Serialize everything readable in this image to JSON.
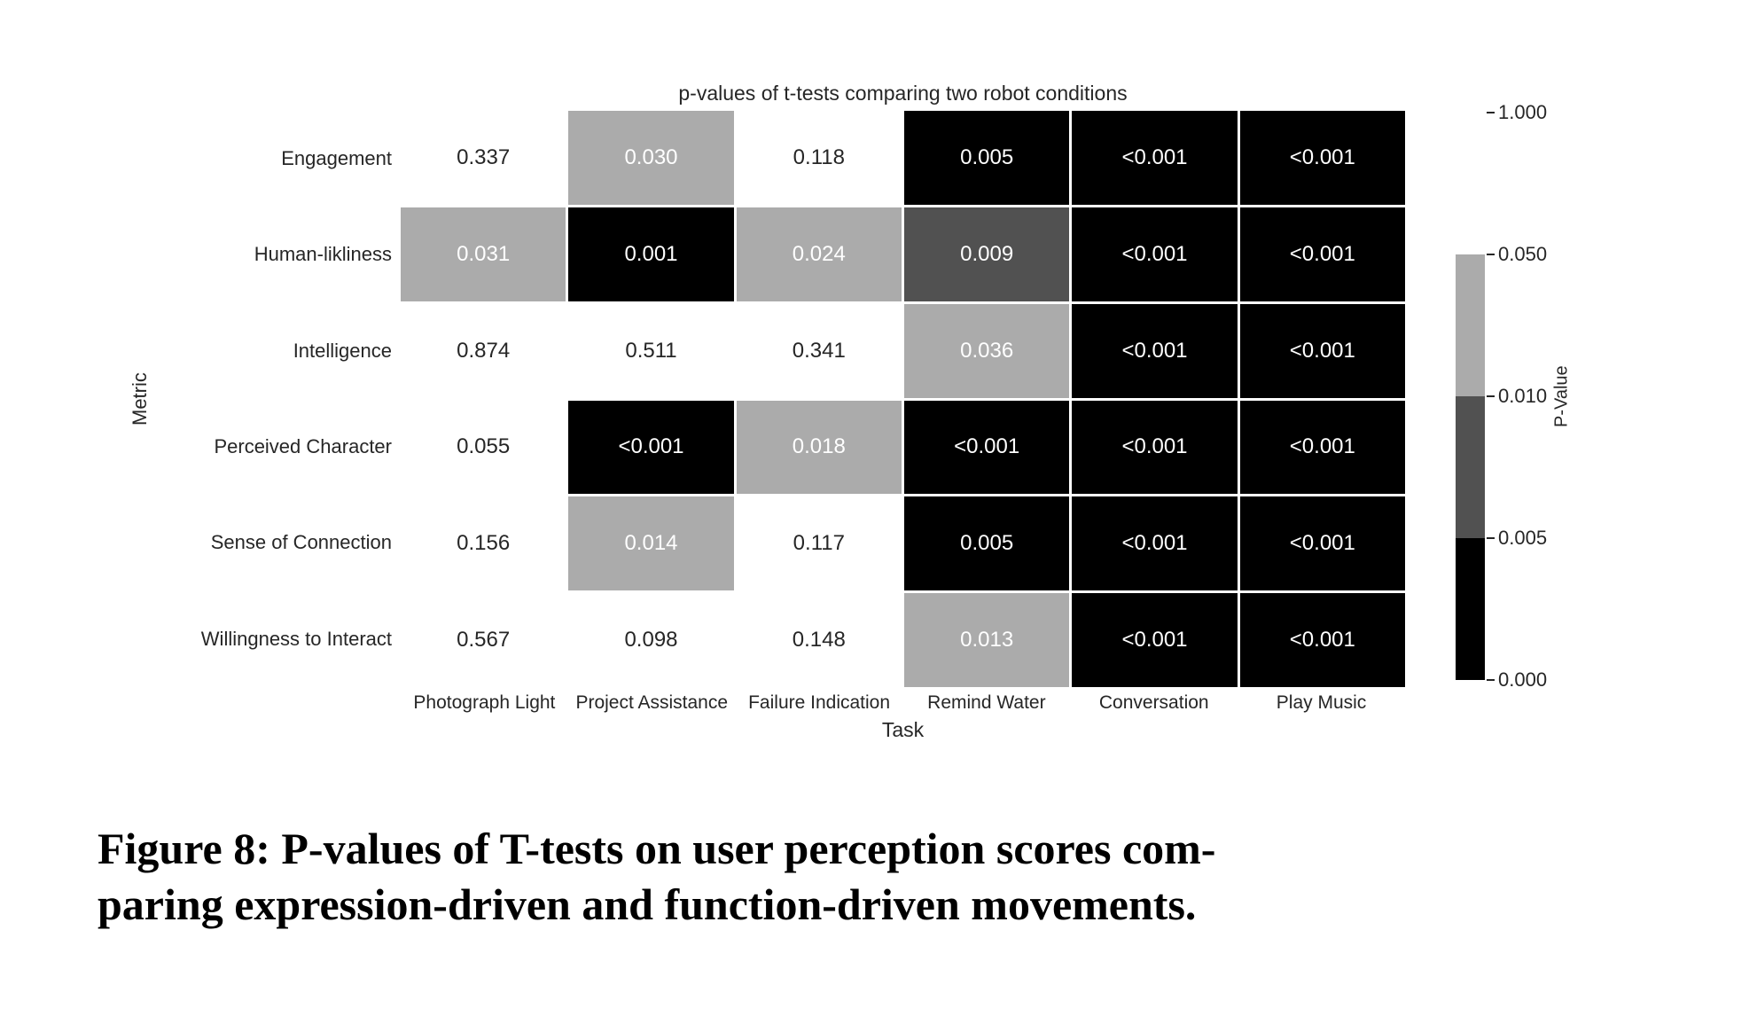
{
  "chart_data": {
    "type": "heatmap",
    "title": "p-values of t-tests comparing two robot conditions",
    "xlabel": "Task",
    "ylabel": "Metric",
    "rows": [
      "Engagement",
      "Human-likliness",
      "Intelligence",
      "Perceived Character",
      "Sense of Connection",
      "Willingness to Interact"
    ],
    "columns": [
      "Photograph Light",
      "Project Assistance",
      "Failure Indication",
      "Remind Water",
      "Conversation",
      "Play Music"
    ],
    "values": [
      [
        "0.337",
        "0.030",
        "0.118",
        "0.005",
        "<0.001",
        "<0.001"
      ],
      [
        "0.031",
        "0.001",
        "0.024",
        "0.009",
        "<0.001",
        "<0.001"
      ],
      [
        "0.874",
        "0.511",
        "0.341",
        "0.036",
        "<0.001",
        "<0.001"
      ],
      [
        "0.055",
        "<0.001",
        "0.018",
        "<0.001",
        "<0.001",
        "<0.001"
      ],
      [
        "0.156",
        "0.014",
        "0.117",
        "0.005",
        "<0.001",
        "<0.001"
      ],
      [
        "0.567",
        "0.098",
        "0.148",
        "0.013",
        "<0.001",
        "<0.001"
      ]
    ],
    "bins": [
      [
        "ns",
        "sig05",
        "ns",
        "sig005",
        "sig005",
        "sig005"
      ],
      [
        "sig05",
        "sig005",
        "sig05",
        "sig01",
        "sig005",
        "sig005"
      ],
      [
        "ns",
        "ns",
        "ns",
        "sig05",
        "sig005",
        "sig005"
      ],
      [
        "ns",
        "sig005",
        "sig05",
        "sig005",
        "sig005",
        "sig005"
      ],
      [
        "ns",
        "sig05",
        "ns",
        "sig005",
        "sig005",
        "sig005"
      ],
      [
        "ns",
        "ns",
        "ns",
        "sig05",
        "sig005",
        "sig005"
      ]
    ],
    "bin_colors": {
      "ns": "#ffffff",
      "sig05": "#ababab",
      "sig01": "#515151",
      "sig005": "#000000"
    },
    "bin_text_colors": {
      "ns": "#262626",
      "sig05": "#ffffff",
      "sig01": "#ffffff",
      "sig005": "#ffffff"
    },
    "grid": false,
    "legend_position": "right",
    "colorbar": {
      "label": "P-Value",
      "ticks": [
        "1.000",
        "0.050",
        "0.010",
        "0.005",
        "0.000"
      ],
      "segments_top_to_bottom": [
        "#ffffff",
        "#ababab",
        "#515151",
        "#000000"
      ]
    }
  },
  "caption": {
    "line1": "Figure 8: P-values of T-tests on user perception scores com-",
    "line2": "paring expression-driven and function-driven movements."
  }
}
